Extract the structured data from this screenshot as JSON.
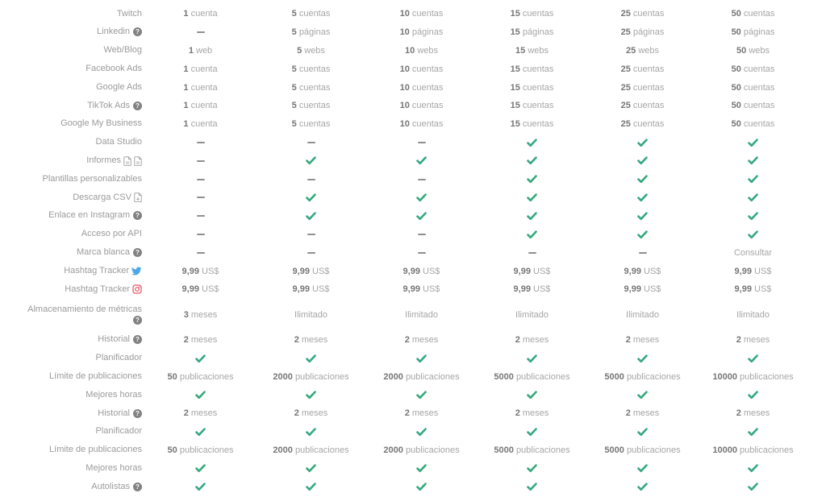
{
  "colors": {
    "check_green": "#35a97e",
    "twitter_blue": "#4da7e8",
    "instagram_red": "#e25563",
    "label_gray": "#9b9b9b",
    "number_gray": "#767676",
    "unit_gray": "#a6a6a6"
  },
  "table": {
    "rows": [
      {
        "label": "Twitch",
        "icons": [],
        "cells": [
          "1 cuenta",
          "5 cuentas",
          "10 cuentas",
          "15 cuentas",
          "25 cuentas",
          "50 cuentas"
        ]
      },
      {
        "label": "Linkedin",
        "icons": [
          "help"
        ],
        "cells": [
          "—",
          "5 páginas",
          "10 páginas",
          "15 páginas",
          "25 páginas",
          "50 páginas"
        ]
      },
      {
        "label": "Web/Blog",
        "icons": [],
        "cells": [
          "1 web",
          "5 webs",
          "10 webs",
          "15 webs",
          "25 webs",
          "50 webs"
        ]
      },
      {
        "label": "Facebook Ads",
        "icons": [],
        "cells": [
          "1 cuenta",
          "5 cuentas",
          "10 cuentas",
          "15 cuentas",
          "25 cuentas",
          "50 cuentas"
        ]
      },
      {
        "label": "Google Ads",
        "icons": [],
        "cells": [
          "1 cuenta",
          "5 cuentas",
          "10 cuentas",
          "15 cuentas",
          "25 cuentas",
          "50 cuentas"
        ]
      },
      {
        "label": "TikTok Ads",
        "icons": [
          "help"
        ],
        "cells": [
          "1 cuenta",
          "5 cuentas",
          "10 cuentas",
          "15 cuentas",
          "25 cuentas",
          "50 cuentas"
        ]
      },
      {
        "label": "Google My Business",
        "icons": [],
        "cells": [
          "1 cuenta",
          "5 cuentas",
          "10 cuentas",
          "15 cuentas",
          "25 cuentas",
          "50 cuentas"
        ]
      },
      {
        "label": "Data Studio",
        "icons": [],
        "cells": [
          "—",
          "—",
          "—",
          "✓",
          "✓",
          "✓"
        ]
      },
      {
        "label": "Informes",
        "icons": [
          "doc",
          "doc"
        ],
        "cells": [
          "—",
          "✓",
          "✓",
          "✓",
          "✓",
          "✓"
        ]
      },
      {
        "label": "Plantillas personalizables",
        "icons": [],
        "cells": [
          "—",
          "—",
          "—",
          "✓",
          "✓",
          "✓"
        ]
      },
      {
        "label": "Descarga CSV",
        "icons": [
          "doc-download"
        ],
        "cells": [
          "—",
          "✓",
          "✓",
          "✓",
          "✓",
          "✓"
        ]
      },
      {
        "label": "Enlace en Instagram",
        "icons": [
          "help"
        ],
        "cells": [
          "—",
          "✓",
          "✓",
          "✓",
          "✓",
          "✓"
        ]
      },
      {
        "label": "Acceso por API",
        "icons": [],
        "cells": [
          "—",
          "—",
          "—",
          "✓",
          "✓",
          "✓"
        ]
      },
      {
        "label": "Marca blanca",
        "icons": [
          "help"
        ],
        "cells": [
          "—",
          "—",
          "—",
          "—",
          "—",
          "Consultar"
        ]
      },
      {
        "label": "Hashtag Tracker",
        "icons": [
          "twitter"
        ],
        "cells": [
          "9,99 US$",
          "9,99 US$",
          "9,99 US$",
          "9,99 US$",
          "9,99 US$",
          "9,99 US$"
        ]
      },
      {
        "label": "Hashtag Tracker",
        "icons": [
          "instagram"
        ],
        "cells": [
          "9,99 US$",
          "9,99 US$",
          "9,99 US$",
          "9,99 US$",
          "9,99 US$",
          "9,99 US$"
        ]
      },
      {
        "label": "Almacenamiento de métricas",
        "icons": [
          "help"
        ],
        "icon_newline": true,
        "tall": true,
        "cells": [
          "3 meses",
          "Ilimitado",
          "Ilimitado",
          "Ilimitado",
          "Ilimitado",
          "Ilimitado"
        ]
      },
      {
        "label": "Historial",
        "icons": [
          "help"
        ],
        "cells": [
          "2 meses",
          "2 meses",
          "2 meses",
          "2 meses",
          "2 meses",
          "2 meses"
        ]
      },
      {
        "label": "Planificador",
        "icons": [],
        "cells": [
          "✓",
          "✓",
          "✓",
          "✓",
          "✓",
          "✓"
        ]
      },
      {
        "label": "Límite de publicaciones",
        "icons": [],
        "cells": [
          "50 publicaciones",
          "2000 publicaciones",
          "2000 publicaciones",
          "5000 publicaciones",
          "5000 publicaciones",
          "10000 publicaciones"
        ]
      },
      {
        "label": "Mejores horas",
        "icons": [],
        "cells": [
          "✓",
          "✓",
          "✓",
          "✓",
          "✓",
          "✓"
        ]
      },
      {
        "label": "Historial",
        "icons": [
          "help"
        ],
        "cells": [
          "2 meses",
          "2 meses",
          "2 meses",
          "2 meses",
          "2 meses",
          "2 meses"
        ]
      },
      {
        "label": "Planificador",
        "icons": [],
        "cells": [
          "✓",
          "✓",
          "✓",
          "✓",
          "✓",
          "✓"
        ]
      },
      {
        "label": "Límite de publicaciones",
        "icons": [],
        "cells": [
          "50 publicaciones",
          "2000 publicaciones",
          "2000 publicaciones",
          "5000 publicaciones",
          "5000 publicaciones",
          "10000 publicaciones"
        ]
      },
      {
        "label": "Mejores horas",
        "icons": [],
        "cells": [
          "✓",
          "✓",
          "✓",
          "✓",
          "✓",
          "✓"
        ]
      },
      {
        "label": "Autolistas",
        "icons": [
          "help"
        ],
        "cells": [
          "✓",
          "✓",
          "✓",
          "✓",
          "✓",
          "✓"
        ]
      }
    ]
  }
}
